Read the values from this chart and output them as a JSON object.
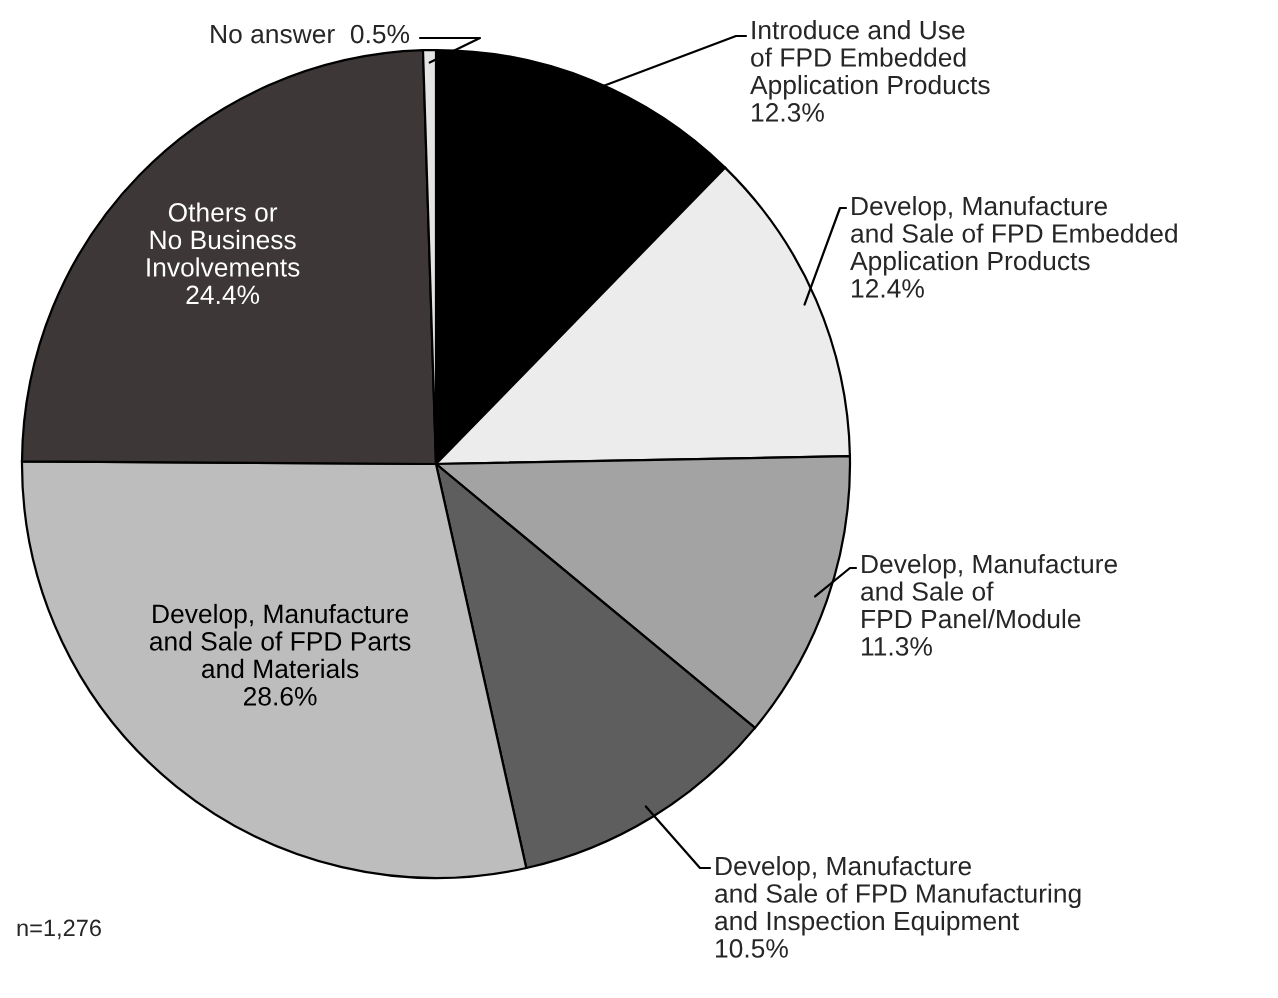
{
  "chart_data": {
    "type": "pie",
    "categories": [
      "Introduce and Use\nof FPD Embedded\nApplication Products",
      "Develop, Manufacture\nand Sale of FPD Embedded\nApplication Products",
      "Develop, Manufacture\nand Sale of\nFPD Panel/Module",
      "Develop, Manufacture\nand Sale of FPD Manufacturing\nand Inspection Equipment",
      "Develop, Manufacture\nand Sale of FPD Parts\nand Materials",
      "Others or\nNo Business\nInvolvements",
      "No answer"
    ],
    "values": [
      12.3,
      12.4,
      11.3,
      10.5,
      28.6,
      24.4,
      0.5
    ],
    "colors": [
      "#000000",
      "#ececec",
      "#a3a3a3",
      "#5e5e5e",
      "#bdbdbd",
      "#3d3837",
      "#e4e4e4"
    ],
    "value_labels": [
      "12.3%",
      "12.4%",
      "11.3%",
      "10.5%",
      "28.6%",
      "24.4%",
      "0.5%"
    ],
    "annotations": [
      "n=1,276"
    ]
  }
}
